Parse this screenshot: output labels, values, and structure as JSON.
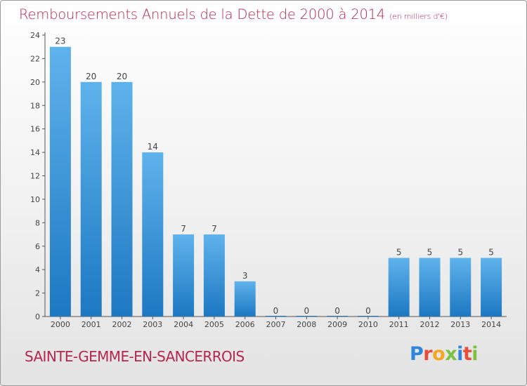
{
  "header": {
    "title": "Remboursements Annuels de la Dette de 2000 à 2014",
    "unit": "(en milliers d'€)"
  },
  "footer": {
    "commune": "SAINTE-GEMME-EN-SANCERROIS",
    "brand_letters": [
      "P",
      "r",
      "o",
      "x",
      "i",
      "t",
      "i"
    ],
    "brand_colors": [
      "#2e86de",
      "#e74c3c",
      "#f5a623",
      "#7cc142",
      "#2e86de",
      "#e74c3c",
      "#7cc142"
    ]
  },
  "colors": {
    "title": "#b5264f",
    "bar_light": "#5fb3ec",
    "bar_dark": "#1d78c2",
    "axis": "#555555"
  },
  "chart_data": {
    "type": "bar",
    "title": "Remboursements Annuels de la Dette de 2000 à 2014",
    "subtitle": "(en milliers d'€)",
    "xlabel": "",
    "ylabel": "",
    "categories": [
      "2000",
      "2001",
      "2002",
      "2003",
      "2004",
      "2005",
      "2006",
      "2007",
      "2008",
      "2009",
      "2010",
      "2011",
      "2012",
      "2013",
      "2014"
    ],
    "values": [
      23,
      20,
      20,
      14,
      7,
      7,
      3,
      0,
      0,
      0,
      0,
      5,
      5,
      5,
      5
    ],
    "data_labels": [
      "23",
      "20",
      "20",
      "14",
      "7",
      "7",
      "3",
      "0",
      "0",
      "0",
      "0",
      "5",
      "5",
      "5",
      "5"
    ],
    "ylim": [
      0,
      24
    ],
    "yticks": [
      "0",
      "2",
      "4",
      "6",
      "8",
      "10",
      "12",
      "14",
      "16",
      "18",
      "20",
      "22",
      "24"
    ],
    "grid": false,
    "legend": "none"
  }
}
